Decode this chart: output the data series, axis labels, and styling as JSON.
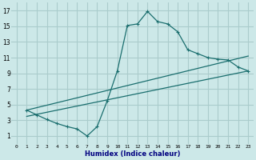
{
  "xlabel": "Humidex (Indice chaleur)",
  "bg_color": "#cce8e8",
  "grid_color": "#aacccc",
  "line_color": "#1a6e6e",
  "xlim": [
    -0.5,
    23.5
  ],
  "ylim": [
    0,
    18
  ],
  "xticks": [
    0,
    1,
    2,
    3,
    4,
    5,
    6,
    7,
    8,
    9,
    10,
    11,
    12,
    13,
    14,
    15,
    16,
    17,
    18,
    19,
    20,
    21,
    22,
    23
  ],
  "yticks": [
    1,
    3,
    5,
    7,
    9,
    11,
    13,
    15,
    17
  ],
  "line1_x": [
    1,
    2,
    3,
    4,
    5,
    6,
    7,
    8,
    9,
    10,
    11,
    12,
    13,
    14,
    15,
    16,
    17,
    18,
    19,
    20,
    21,
    22,
    23
  ],
  "line1_y": [
    4.3,
    3.7,
    3.1,
    2.6,
    2.2,
    1.9,
    1.0,
    2.2,
    5.5,
    9.3,
    15.1,
    15.3,
    16.9,
    15.6,
    15.3,
    14.3,
    12.0,
    11.5,
    11.0,
    10.8,
    10.7,
    9.8,
    9.3
  ],
  "line2_x": [
    1,
    23
  ],
  "line2_y": [
    4.3,
    11.2
  ],
  "line3_x": [
    1,
    23
  ],
  "line3_y": [
    3.5,
    9.3
  ],
  "marker": "+"
}
